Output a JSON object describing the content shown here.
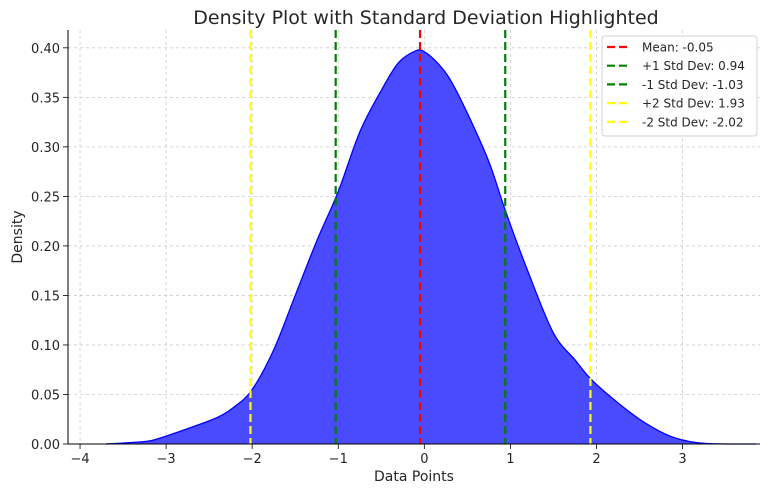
{
  "chart_data": {
    "type": "area",
    "title": "Density Plot with Standard Deviation Highlighted",
    "xlabel": "Data Points",
    "ylabel": "Density",
    "xlim": [
      -4.14,
      3.9
    ],
    "ylim": [
      0,
      0.418
    ],
    "xticks": [
      -4,
      -3,
      -2,
      -1,
      0,
      1,
      2,
      3
    ],
    "yticks": [
      0.0,
      0.05,
      0.1,
      0.15,
      0.2,
      0.25,
      0.3,
      0.35,
      0.4
    ],
    "grid": true,
    "legend_placement": "top-right",
    "fill_color": "#4a4aff",
    "line_color": "#0000ff",
    "density": {
      "x": [
        -3.7,
        -3.5,
        -3.2,
        -3.0,
        -2.7,
        -2.4,
        -2.2,
        -2.0,
        -1.75,
        -1.5,
        -1.25,
        -1.0,
        -0.75,
        -0.5,
        -0.3,
        -0.1,
        0.0,
        0.15,
        0.3,
        0.5,
        0.75,
        0.94,
        1.2,
        1.5,
        1.75,
        1.93,
        2.2,
        2.5,
        2.8,
        3.0,
        3.2,
        3.5,
        3.85
      ],
      "y": [
        0.0,
        0.001,
        0.003,
        0.008,
        0.017,
        0.027,
        0.038,
        0.055,
        0.095,
        0.15,
        0.205,
        0.255,
        0.315,
        0.357,
        0.385,
        0.397,
        0.396,
        0.385,
        0.368,
        0.334,
        0.285,
        0.236,
        0.175,
        0.112,
        0.085,
        0.066,
        0.045,
        0.025,
        0.01,
        0.004,
        0.001,
        0.0,
        0.0
      ]
    },
    "vlines": [
      {
        "label": "Mean: -0.05",
        "x": -0.05,
        "color": "#ff0000"
      },
      {
        "label": "+1 Std Dev: 0.94",
        "x": 0.94,
        "color": "#008000"
      },
      {
        "label": "-1 Std Dev: -1.03",
        "x": -1.03,
        "color": "#008000"
      },
      {
        "label": "+2 Std Dev: 1.93",
        "x": 1.93,
        "color": "#ffff00"
      },
      {
        "label": "-2 Std Dev: -2.02",
        "x": -2.02,
        "color": "#ffff00"
      }
    ]
  }
}
